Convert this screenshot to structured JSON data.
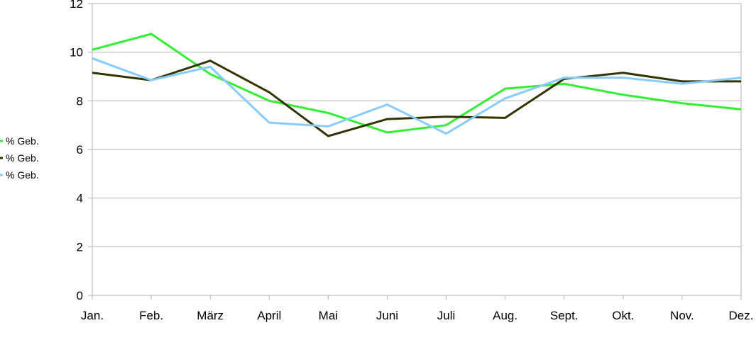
{
  "chart_data": {
    "type": "line",
    "title": "",
    "xlabel": "",
    "ylabel": "",
    "categories": [
      "Jan.",
      "Feb.",
      "März",
      "April",
      "Mai",
      "Juni",
      "Juli",
      "Aug.",
      "Sept.",
      "Okt.",
      "Nov.",
      "Dez."
    ],
    "ylim": [
      0,
      12
    ],
    "yticks": [
      "0",
      "2",
      "4",
      "6",
      "8",
      "10",
      "12"
    ],
    "grid": "horizontal",
    "legend_position": "left",
    "series": [
      {
        "name": "% Geb.",
        "color": "#33ee33",
        "values": [
          10.1,
          10.75,
          9.1,
          8.0,
          7.5,
          6.7,
          7.0,
          8.5,
          8.7,
          8.25,
          7.9,
          7.65
        ]
      },
      {
        "name": "% Geb.",
        "color": "#333300",
        "values": [
          9.15,
          8.85,
          9.65,
          8.35,
          6.55,
          7.25,
          7.35,
          7.3,
          8.9,
          9.15,
          8.8,
          8.8
        ]
      },
      {
        "name": "% Geb.",
        "color": "#88ccff",
        "values": [
          9.75,
          8.85,
          9.4,
          7.1,
          6.95,
          7.85,
          6.65,
          8.1,
          8.95,
          8.95,
          8.7,
          8.95
        ]
      }
    ]
  }
}
